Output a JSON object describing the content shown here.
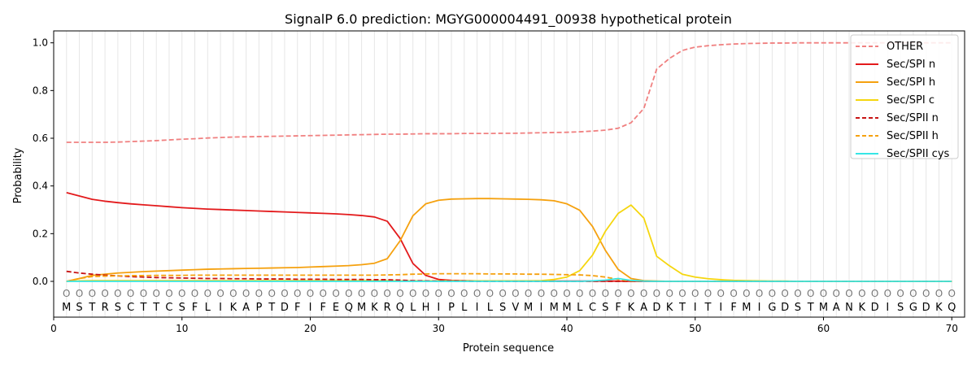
{
  "chart_data": {
    "type": "line",
    "title": "SignalP 6.0 prediction: MGYG000004491_00938 hypothetical protein",
    "xlabel": "Protein sequence",
    "ylabel": "Probability",
    "xlim": [
      0,
      71
    ],
    "ylim": [
      -0.15,
      1.05
    ],
    "x_ticks": [
      0,
      10,
      20,
      30,
      40,
      50,
      60,
      70
    ],
    "y_ticks": [
      0.0,
      0.2,
      0.4,
      0.6,
      0.8,
      1.0
    ],
    "x_tick_labels": [
      "0",
      "10",
      "20",
      "30",
      "40",
      "50",
      "60",
      "70"
    ],
    "y_tick_labels": [
      "0.0",
      "0.2",
      "0.4",
      "0.6",
      "0.8",
      "1.0"
    ],
    "legend_position": "top-right",
    "sequence": [
      "M",
      "S",
      "T",
      "R",
      "S",
      "C",
      "T",
      "T",
      "C",
      "S",
      "F",
      "L",
      "I",
      "K",
      "A",
      "P",
      "T",
      "D",
      "F",
      "I",
      "F",
      "E",
      "Q",
      "M",
      "K",
      "R",
      "Q",
      "L",
      "H",
      "I",
      "P",
      "L",
      "I",
      "L",
      "S",
      "V",
      "M",
      "I",
      "M",
      "M",
      "L",
      "C",
      "S",
      "F",
      "K",
      "A",
      "D",
      "K",
      "T",
      "I",
      "T",
      "I",
      "F",
      "M",
      "I",
      "G",
      "D",
      "S",
      "T",
      "M",
      "A",
      "N",
      "K",
      "D",
      "I",
      "S",
      "G",
      "D",
      "K",
      "Q"
    ],
    "region_labels": [
      "O",
      "O",
      "O",
      "O",
      "O",
      "O",
      "O",
      "O",
      "O",
      "O",
      "O",
      "O",
      "O",
      "O",
      "O",
      "O",
      "O",
      "O",
      "O",
      "O",
      "O",
      "O",
      "O",
      "O",
      "O",
      "O",
      "O",
      "O",
      "O",
      "O",
      "O",
      "O",
      "O",
      "O",
      "O",
      "O",
      "O",
      "O",
      "O",
      "O",
      "O",
      "O",
      "O",
      "O",
      "O",
      "O",
      "O",
      "O",
      "O",
      "O",
      "O",
      "O",
      "O",
      "O",
      "O",
      "O",
      "O",
      "O",
      "O",
      "O",
      "O",
      "O",
      "O",
      "O",
      "O",
      "O",
      "O",
      "O",
      "O",
      "O"
    ],
    "series": [
      {
        "name": "OTHER",
        "color": "#f08080",
        "dash": "dashed",
        "values": [
          0.583,
          0.583,
          0.583,
          0.583,
          0.584,
          0.586,
          0.588,
          0.59,
          0.593,
          0.596,
          0.598,
          0.601,
          0.603,
          0.605,
          0.606,
          0.607,
          0.608,
          0.609,
          0.61,
          0.611,
          0.612,
          0.613,
          0.614,
          0.615,
          0.616,
          0.617,
          0.617,
          0.618,
          0.619,
          0.619,
          0.619,
          0.62,
          0.62,
          0.62,
          0.621,
          0.621,
          0.622,
          0.623,
          0.624,
          0.625,
          0.627,
          0.63,
          0.634,
          0.642,
          0.665,
          0.725,
          0.89,
          0.935,
          0.968,
          0.982,
          0.988,
          0.992,
          0.995,
          0.997,
          0.998,
          0.999,
          0.999,
          1.0,
          1.0,
          1.0,
          1.0,
          1.0,
          1.0,
          1.0,
          1.0,
          1.0,
          1.0,
          1.0,
          1.0,
          1.0
        ]
      },
      {
        "name": "Sec/SPI n",
        "color": "#e31a1c",
        "dash": "solid",
        "values": [
          0.372,
          0.358,
          0.344,
          0.336,
          0.33,
          0.325,
          0.321,
          0.317,
          0.313,
          0.309,
          0.306,
          0.303,
          0.301,
          0.299,
          0.297,
          0.295,
          0.293,
          0.291,
          0.289,
          0.287,
          0.285,
          0.283,
          0.28,
          0.276,
          0.27,
          0.252,
          0.18,
          0.075,
          0.025,
          0.008,
          0.004,
          0.003,
          0.002,
          0.002,
          0.002,
          0.001,
          0.001,
          0.001,
          0.001,
          0.001,
          0.001,
          0.001,
          0.001,
          0.001,
          0.0,
          0.0,
          0.0,
          0.0,
          0.0,
          0.0,
          0.0,
          0.0,
          0.0,
          0.0,
          0.0,
          0.0,
          0.0,
          0.0,
          0.0,
          0.0,
          0.0,
          0.0,
          0.0,
          0.0,
          0.0,
          0.0,
          0.0,
          0.0,
          0.0,
          0.0
        ]
      },
      {
        "name": "Sec/SPI h",
        "color": "#f5a10f",
        "dash": "solid",
        "values": [
          0.0,
          0.012,
          0.025,
          0.03,
          0.035,
          0.038,
          0.041,
          0.043,
          0.045,
          0.047,
          0.049,
          0.051,
          0.052,
          0.053,
          0.054,
          0.055,
          0.056,
          0.057,
          0.058,
          0.06,
          0.062,
          0.064,
          0.066,
          0.07,
          0.076,
          0.095,
          0.17,
          0.275,
          0.325,
          0.34,
          0.345,
          0.346,
          0.347,
          0.347,
          0.346,
          0.345,
          0.344,
          0.342,
          0.338,
          0.325,
          0.298,
          0.23,
          0.13,
          0.05,
          0.012,
          0.003,
          0.001,
          0.0,
          0.0,
          0.0,
          0.0,
          0.0,
          0.0,
          0.0,
          0.0,
          0.0,
          0.0,
          0.0,
          0.0,
          0.0,
          0.0,
          0.0,
          0.0,
          0.0,
          0.0,
          0.0,
          0.0,
          0.0,
          0.0,
          0.0
        ]
      },
      {
        "name": "Sec/SPI c",
        "color": "#f5d60f",
        "dash": "solid",
        "values": [
          0.0,
          0.002,
          0.003,
          0.003,
          0.003,
          0.003,
          0.003,
          0.003,
          0.003,
          0.003,
          0.003,
          0.003,
          0.003,
          0.003,
          0.003,
          0.003,
          0.003,
          0.003,
          0.003,
          0.003,
          0.003,
          0.003,
          0.003,
          0.003,
          0.003,
          0.003,
          0.002,
          0.002,
          0.002,
          0.002,
          0.002,
          0.002,
          0.002,
          0.002,
          0.002,
          0.002,
          0.002,
          0.003,
          0.008,
          0.018,
          0.045,
          0.11,
          0.21,
          0.285,
          0.32,
          0.265,
          0.105,
          0.065,
          0.03,
          0.018,
          0.011,
          0.007,
          0.004,
          0.003,
          0.002,
          0.001,
          0.001,
          0.0,
          0.0,
          0.0,
          0.0,
          0.0,
          0.0,
          0.0,
          0.0,
          0.0,
          0.0,
          0.0,
          0.0,
          0.0
        ]
      },
      {
        "name": "Sec/SPII n",
        "color": "#c81414",
        "dash": "dashed",
        "values": [
          0.042,
          0.035,
          0.03,
          0.026,
          0.023,
          0.02,
          0.018,
          0.016,
          0.015,
          0.014,
          0.013,
          0.012,
          0.012,
          0.011,
          0.011,
          0.01,
          0.01,
          0.01,
          0.009,
          0.009,
          0.009,
          0.008,
          0.008,
          0.008,
          0.007,
          0.007,
          0.005,
          0.003,
          0.002,
          0.001,
          0.001,
          0.001,
          0.0,
          0.0,
          0.0,
          0.0,
          0.0,
          0.0,
          0.0,
          0.0,
          0.0,
          0.0,
          0.0,
          0.0,
          0.0,
          0.0,
          0.0,
          0.0,
          0.0,
          0.0,
          0.0,
          0.0,
          0.0,
          0.0,
          0.0,
          0.0,
          0.0,
          0.0,
          0.0,
          0.0,
          0.0,
          0.0,
          0.0,
          0.0,
          0.0,
          0.0,
          0.0,
          0.0,
          0.0,
          0.0
        ]
      },
      {
        "name": "Sec/SPII h",
        "color": "#f5a10f",
        "dash": "dashed",
        "values": [
          0.0,
          0.012,
          0.02,
          0.022,
          0.023,
          0.024,
          0.024,
          0.025,
          0.025,
          0.025,
          0.026,
          0.026,
          0.026,
          0.026,
          0.026,
          0.026,
          0.026,
          0.026,
          0.026,
          0.026,
          0.026,
          0.026,
          0.026,
          0.026,
          0.026,
          0.027,
          0.028,
          0.03,
          0.031,
          0.032,
          0.032,
          0.032,
          0.032,
          0.031,
          0.031,
          0.031,
          0.03,
          0.03,
          0.029,
          0.028,
          0.027,
          0.024,
          0.018,
          0.008,
          0.002,
          0.001,
          0.0,
          0.0,
          0.0,
          0.0,
          0.0,
          0.0,
          0.0,
          0.0,
          0.0,
          0.0,
          0.0,
          0.0,
          0.0,
          0.0,
          0.0,
          0.0,
          0.0,
          0.0,
          0.0,
          0.0,
          0.0,
          0.0,
          0.0,
          0.0
        ]
      },
      {
        "name": "Sec/SPII cys",
        "color": "#36e6e6",
        "dash": "solid",
        "values": [
          0.0,
          0.0,
          0.0,
          0.0,
          0.0,
          0.0,
          0.0,
          0.0,
          0.0,
          0.0,
          0.0,
          0.0,
          0.0,
          0.0,
          0.0,
          0.0,
          0.0,
          0.0,
          0.0,
          0.0,
          0.0,
          0.0,
          0.0,
          0.0,
          0.0,
          0.0,
          0.0,
          0.0,
          0.0,
          0.0,
          0.0,
          0.0,
          0.0,
          0.0,
          0.0,
          0.0,
          0.0,
          0.0,
          0.0,
          0.0,
          0.0,
          0.002,
          0.005,
          0.012,
          0.004,
          0.001,
          0.0,
          0.0,
          0.0,
          0.0,
          0.0,
          0.0,
          0.0,
          0.0,
          0.0,
          0.0,
          0.0,
          0.0,
          0.0,
          0.0,
          0.0,
          0.0,
          0.0,
          0.0,
          0.0,
          0.0,
          0.0,
          0.0,
          0.0,
          0.0
        ]
      }
    ]
  }
}
